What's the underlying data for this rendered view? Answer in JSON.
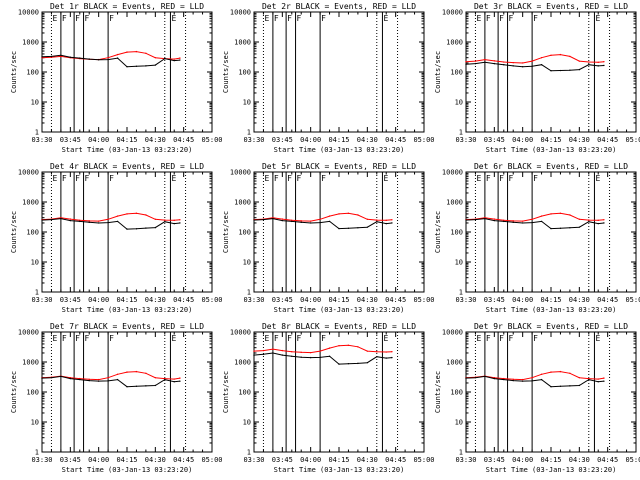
{
  "chart_data": {
    "type": "line",
    "layout": {
      "rows": 3,
      "cols": 3
    },
    "common": {
      "xlabel": "Start Time (03-Jan-13 03:23:20)",
      "ylabel": "Counts/sec",
      "ylog": true,
      "ylim": [
        1,
        10000
      ],
      "xlim": [
        "03:30",
        "05:00"
      ],
      "xtick_labels": [
        "03:30",
        "03:45",
        "04:00",
        "04:15",
        "04:30",
        "04:45",
        "05:00"
      ],
      "ytick_labels": [
        "1",
        "10",
        "100",
        "1000",
        "10000"
      ],
      "series_colors": {
        "events": "#000000",
        "lld": "#ff0000"
      },
      "markers": [
        {
          "t": "03:35",
          "label": "E",
          "style": "dotted"
        },
        {
          "t": "03:40",
          "label": "F",
          "style": "solid"
        },
        {
          "t": "03:47",
          "label": "F",
          "style": "solid"
        },
        {
          "t": "03:52",
          "label": "F",
          "style": "solid"
        },
        {
          "t": "04:05",
          "label": "F",
          "style": "solid"
        },
        {
          "t": "04:35",
          "label": "",
          "style": "dotted"
        },
        {
          "t": "04:38",
          "label": "E",
          "style": "solid"
        },
        {
          "t": "04:46",
          "label": "",
          "style": "dotted"
        }
      ],
      "time_samples": [
        "03:30",
        "03:35",
        "03:40",
        "03:45",
        "03:50",
        "03:55",
        "04:00",
        "04:05",
        "04:10",
        "04:15",
        "04:20",
        "04:25",
        "04:30",
        "04:35",
        "04:40",
        "04:43"
      ]
    },
    "panels": [
      {
        "title": "Det 1r BLACK = Events, RED = LLD",
        "events": [
          320,
          330,
          360,
          310,
          290,
          270,
          255,
          260,
          290,
          150,
          155,
          160,
          170,
          280,
          240,
          250
        ],
        "lld": [
          300,
          310,
          330,
          300,
          280,
          265,
          260,
          300,
          380,
          460,
          480,
          420,
          300,
          280,
          270,
          290
        ]
      },
      {
        "title": "Det 2r BLACK = Events, RED = LLD",
        "events": [],
        "lld": []
      },
      {
        "title": "Det 3r BLACK = Events, RED = LLD",
        "events": [
          180,
          190,
          210,
          190,
          175,
          160,
          150,
          155,
          175,
          110,
          112,
          115,
          120,
          175,
          160,
          165
        ],
        "lld": [
          220,
          230,
          260,
          235,
          215,
          205,
          200,
          230,
          300,
          360,
          380,
          330,
          230,
          215,
          210,
          220
        ]
      },
      {
        "title": "Det 4r BLACK = Events, RED = LLD",
        "events": [
          250,
          260,
          280,
          240,
          225,
          210,
          200,
          205,
          225,
          125,
          128,
          135,
          140,
          220,
          190,
          200
        ],
        "lld": [
          260,
          270,
          300,
          270,
          245,
          235,
          230,
          265,
          340,
          400,
          420,
          370,
          265,
          250,
          245,
          255
        ]
      },
      {
        "title": "Det 5r BLACK = Events, RED = LLD",
        "events": [
          250,
          260,
          280,
          240,
          225,
          210,
          200,
          205,
          225,
          130,
          133,
          138,
          145,
          220,
          190,
          200
        ],
        "lld": [
          260,
          270,
          300,
          270,
          245,
          235,
          230,
          265,
          340,
          400,
          420,
          370,
          265,
          250,
          245,
          255
        ]
      },
      {
        "title": "Det 6r BLACK = Events, RED = LLD",
        "events": [
          250,
          260,
          280,
          240,
          225,
          210,
          200,
          205,
          225,
          130,
          133,
          138,
          145,
          220,
          190,
          200
        ],
        "lld": [
          260,
          270,
          300,
          270,
          245,
          235,
          230,
          265,
          340,
          400,
          420,
          370,
          265,
          250,
          245,
          255
        ]
      },
      {
        "title": "Det 7r BLACK = Events, RED = LLD",
        "events": [
          290,
          300,
          330,
          280,
          260,
          240,
          230,
          235,
          260,
          150,
          155,
          160,
          165,
          260,
          220,
          230
        ],
        "lld": [
          300,
          310,
          340,
          300,
          280,
          265,
          260,
          300,
          390,
          460,
          480,
          420,
          300,
          280,
          270,
          290
        ]
      },
      {
        "title": "Det 8r BLACK = Events, RED = LLD",
        "events": [
          1700,
          1800,
          2000,
          1700,
          1550,
          1450,
          1400,
          1420,
          1550,
          850,
          880,
          900,
          950,
          1500,
          1350,
          1400
        ],
        "lld": [
          2300,
          2400,
          2700,
          2400,
          2200,
          2100,
          2050,
          2300,
          2900,
          3500,
          3600,
          3200,
          2300,
          2200,
          2150,
          2200
        ]
      },
      {
        "title": "Det 9r BLACK = Events, RED = LLD",
        "events": [
          290,
          300,
          330,
          280,
          260,
          240,
          230,
          235,
          260,
          150,
          155,
          160,
          165,
          260,
          220,
          230
        ],
        "lld": [
          300,
          310,
          340,
          300,
          280,
          265,
          260,
          300,
          390,
          460,
          480,
          420,
          300,
          280,
          270,
          290
        ]
      }
    ]
  }
}
